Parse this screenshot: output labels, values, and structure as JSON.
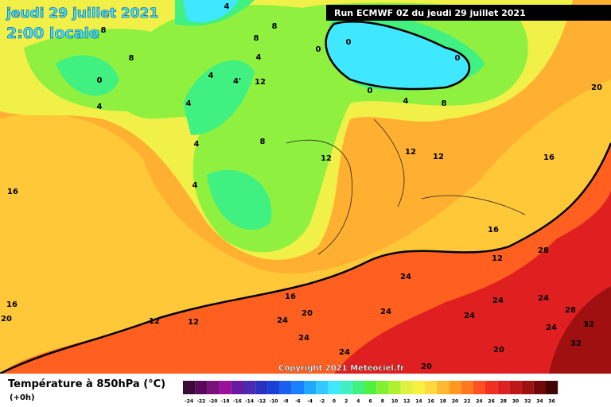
{
  "header": {
    "date": "jeudi 29 juillet 2021",
    "time": "2:00 locale",
    "run": "Run ECMWF 0Z du jeudi 29 juillet 2021",
    "copyright": "Copyright 2021 Meteociel.fr"
  },
  "legend": {
    "title": "Température à 850hPa (°C)",
    "step": "(+0h)",
    "labels": [
      "-24",
      "-22",
      "-20",
      "-18",
      "-16",
      "-14",
      "-12",
      "-10",
      "-8",
      "-6",
      "-4",
      "-2",
      "0",
      "2",
      "4",
      "6",
      "8",
      "10",
      "12",
      "14",
      "16",
      "18",
      "20",
      "22",
      "24",
      "26",
      "28",
      "30",
      "32",
      "34",
      "36"
    ],
    "colors": [
      "#3a0a3a",
      "#5a0a5a",
      "#7a107a",
      "#9a109a",
      "#6a1aa0",
      "#4a2ab0",
      "#2a30c0",
      "#1a40d8",
      "#1a60f0",
      "#1a80ff",
      "#20a8ff",
      "#30c8ff",
      "#40e8ff",
      "#40f0c0",
      "#40f080",
      "#50f040",
      "#80f030",
      "#b0f030",
      "#e0f040",
      "#f8f040",
      "#ffd840",
      "#ffb830",
      "#ff9820",
      "#ff7820",
      "#ff5020",
      "#f03020",
      "#e02020",
      "#c01818",
      "#a01010",
      "#700808",
      "#400404"
    ]
  },
  "contour_labels": [
    "8",
    "0",
    "8",
    "4",
    "4",
    "8",
    "8",
    "4",
    "4'",
    "4",
    "4",
    "4",
    "8",
    "12",
    "4",
    "16",
    "12",
    "12",
    "12",
    "16",
    "16",
    "12",
    "28",
    "24",
    "16",
    "20",
    "24",
    "12",
    "12",
    "24",
    "24",
    "24",
    "24",
    "28",
    "32",
    "32",
    "24",
    "24",
    "24",
    "20",
    "20",
    "16",
    "20",
    "20",
    "8",
    "0",
    "0",
    "0",
    "0",
    "4",
    "4"
  ]
}
